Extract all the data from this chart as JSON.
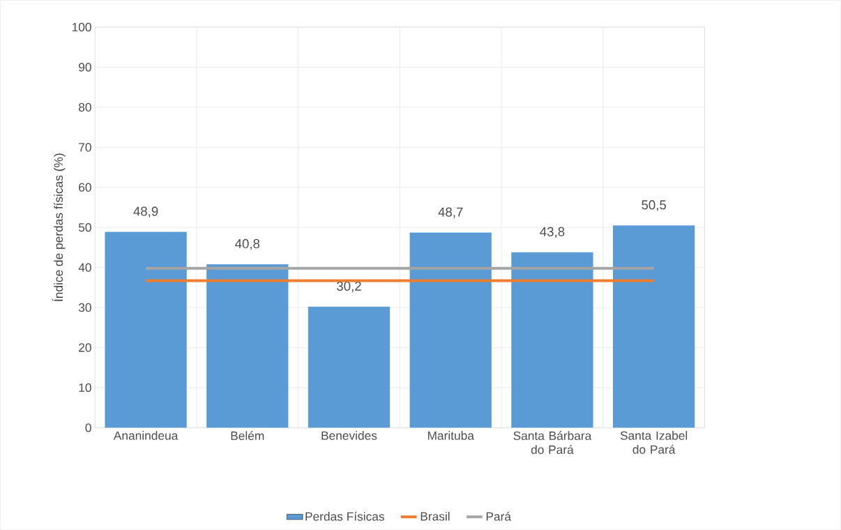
{
  "chart_data": {
    "type": "bar",
    "ylabel": "Índice de perdas físicas (%)",
    "categories": [
      "Ananindeua",
      "Belém",
      "Benevides",
      "Marituba",
      "Santa Bárbara do Pará",
      "Santa Izabel do Pará"
    ],
    "series": [
      {
        "name": "Perdas Físicas",
        "color": "#5b9bd5",
        "values": [
          48.9,
          40.8,
          30.2,
          48.7,
          43.8,
          50.5
        ],
        "value_labels": [
          "48,9",
          "40,8",
          "30,2",
          "48,7",
          "43,8",
          "50,5"
        ]
      },
      {
        "name": "Brasil",
        "type": "line",
        "color": "#ed7d31",
        "values": [
          36.7,
          36.7,
          36.7,
          36.7,
          36.7,
          36.7
        ]
      },
      {
        "name": "Pará",
        "type": "line",
        "color": "#a5a5a5",
        "values": [
          39.8,
          39.8,
          39.8,
          39.8,
          39.8,
          39.8
        ]
      }
    ],
    "ylim": [
      0,
      100
    ],
    "yticks": [
      0,
      10,
      20,
      30,
      40,
      50,
      60,
      70,
      80,
      90,
      100
    ],
    "grid": true,
    "legend": "bottom"
  }
}
